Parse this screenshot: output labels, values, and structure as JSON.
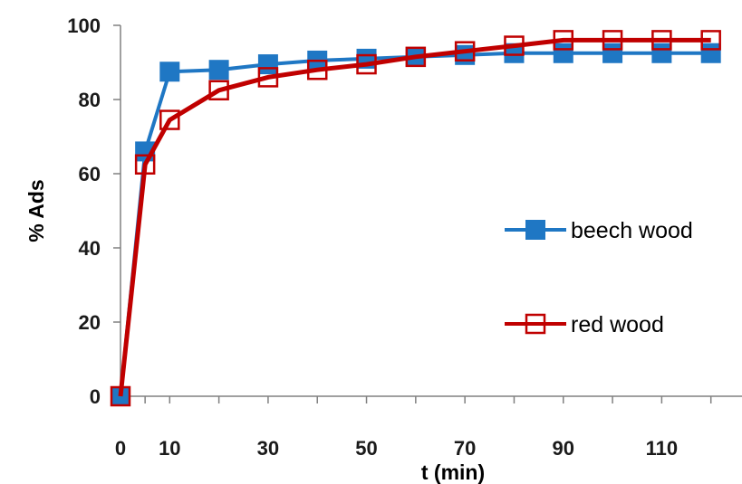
{
  "chart_data": {
    "type": "line",
    "title": "",
    "xlabel": "t (min)",
    "ylabel": "% Ads",
    "xlim": [
      0,
      130
    ],
    "ylim": [
      0,
      100
    ],
    "x_ticks": [
      "0",
      "10",
      "30",
      "50",
      "70",
      "90",
      "110"
    ],
    "x_tick_values": [
      0,
      10,
      30,
      50,
      70,
      90,
      110
    ],
    "y_ticks": [
      "0",
      "20",
      "40",
      "60",
      "80",
      "100"
    ],
    "y_tick_values": [
      0,
      20,
      40,
      60,
      80,
      100
    ],
    "grid": false,
    "legend_position": "right",
    "x": [
      0,
      5,
      10,
      20,
      30,
      40,
      50,
      60,
      70,
      80,
      90,
      100,
      110,
      120
    ],
    "series": [
      {
        "name": "beech wood",
        "color": "#1f77c4",
        "marker": "filled-square",
        "values": [
          0,
          66,
          87.5,
          88,
          89.5,
          90.5,
          91,
          91.5,
          92,
          92.5,
          92.5,
          92.5,
          92.5,
          92.5
        ]
      },
      {
        "name": "red wood",
        "color": "#c00000",
        "marker": "open-square",
        "values": [
          0,
          62.5,
          74.5,
          82.5,
          86,
          88,
          89.5,
          91.5,
          93,
          94.5,
          96,
          96,
          96,
          96
        ]
      }
    ]
  }
}
